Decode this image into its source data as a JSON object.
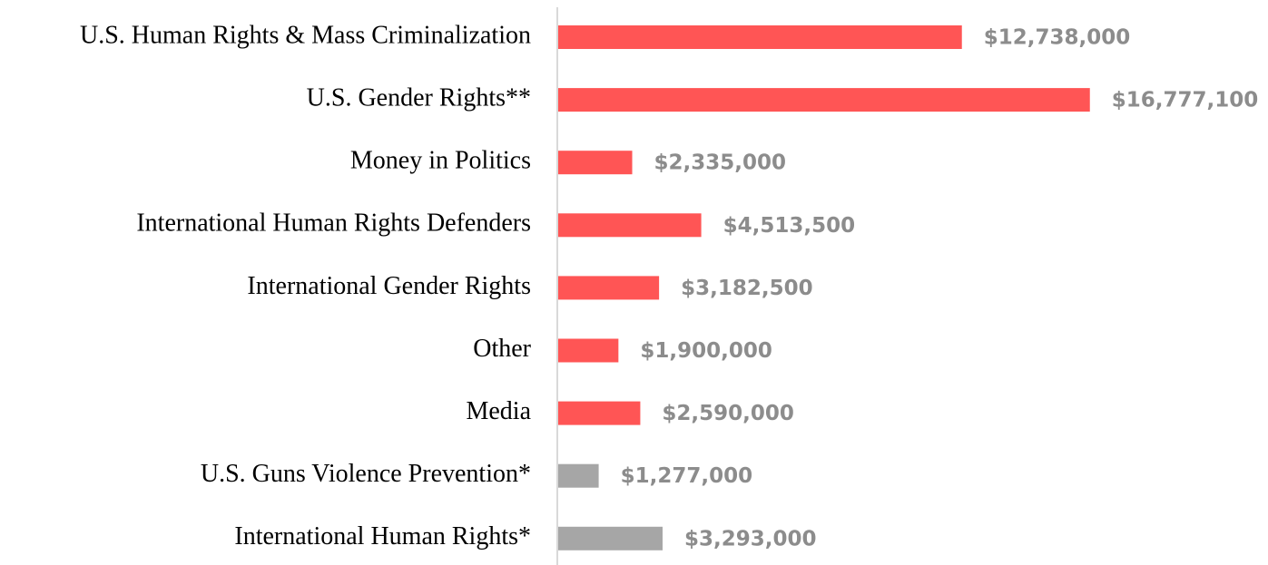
{
  "chart_data": {
    "type": "hbar",
    "categories": [
      "U.S. Human Rights & Mass Criminalization",
      "U.S. Gender Rights**",
      "Money in Politics",
      "International Human Rights Defenders",
      "International Gender Rights",
      "Other",
      "Media",
      "U.S. Guns Violence Prevention*",
      "International Human Rights*"
    ],
    "values": [
      12738000,
      16777100,
      2335000,
      4513500,
      3182500,
      1900000,
      2590000,
      1277000,
      3293000
    ],
    "value_labels": [
      "$12,738,000",
      "$16,777,100",
      "$2,335,000",
      "$4,513,500",
      "$3,182,500",
      "$1,900,000",
      "$2,590,000",
      "$1,277,000",
      "$3,293,000"
    ],
    "colors": [
      "#ff5555",
      "#ff5555",
      "#ff5555",
      "#ff5555",
      "#ff5555",
      "#ff5555",
      "#ff5555",
      "#a6a6a6",
      "#a6a6a6"
    ],
    "xlim": [
      0,
      17500000
    ]
  }
}
